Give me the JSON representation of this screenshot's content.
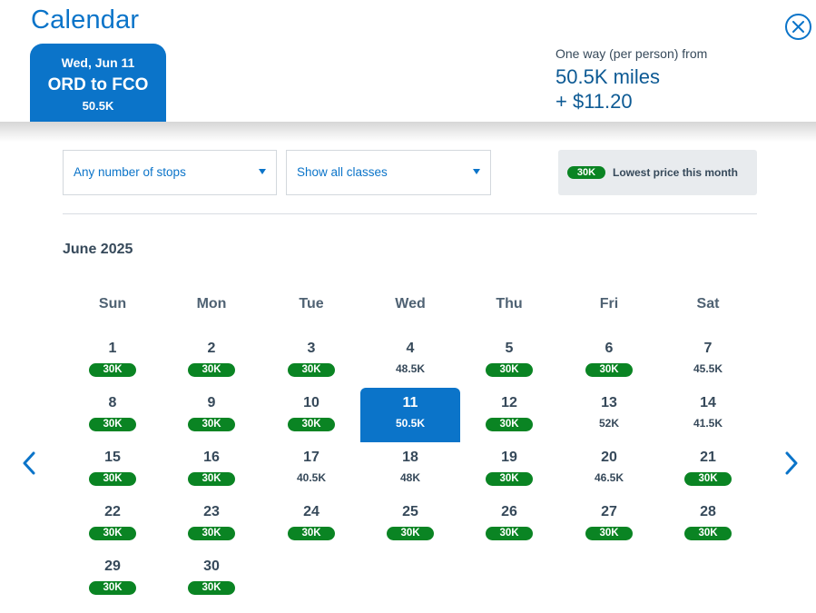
{
  "header": {
    "title": "Calendar",
    "trip": {
      "date": "Wed, Jun 11",
      "route": "ORD to FCO",
      "price": "50.5K"
    },
    "fare": {
      "label": "One way (per person) from",
      "miles": "50.5K miles",
      "cash": "+ $11.20"
    }
  },
  "filters": {
    "stops": "Any number of stops",
    "classes": "Show all classes"
  },
  "legend": {
    "badge": "30K",
    "text": "Lowest price this month"
  },
  "month_label": "June 2025",
  "weekdays": [
    "Sun",
    "Mon",
    "Tue",
    "Wed",
    "Thu",
    "Fri",
    "Sat"
  ],
  "colors": {
    "accent": "#0b74c9",
    "lowest": "#0a8423",
    "text": "#36495a"
  },
  "selected_day": "11",
  "days": [
    {
      "num": "1",
      "price": "30K",
      "lowest": true
    },
    {
      "num": "2",
      "price": "30K",
      "lowest": true
    },
    {
      "num": "3",
      "price": "30K",
      "lowest": true
    },
    {
      "num": "4",
      "price": "48.5K",
      "lowest": false
    },
    {
      "num": "5",
      "price": "30K",
      "lowest": true
    },
    {
      "num": "6",
      "price": "30K",
      "lowest": true
    },
    {
      "num": "7",
      "price": "45.5K",
      "lowest": false
    },
    {
      "num": "8",
      "price": "30K",
      "lowest": true
    },
    {
      "num": "9",
      "price": "30K",
      "lowest": true
    },
    {
      "num": "10",
      "price": "30K",
      "lowest": true
    },
    {
      "num": "11",
      "price": "50.5K",
      "lowest": false
    },
    {
      "num": "12",
      "price": "30K",
      "lowest": true
    },
    {
      "num": "13",
      "price": "52K",
      "lowest": false
    },
    {
      "num": "14",
      "price": "41.5K",
      "lowest": false
    },
    {
      "num": "15",
      "price": "30K",
      "lowest": true
    },
    {
      "num": "16",
      "price": "30K",
      "lowest": true
    },
    {
      "num": "17",
      "price": "40.5K",
      "lowest": false
    },
    {
      "num": "18",
      "price": "48K",
      "lowest": false
    },
    {
      "num": "19",
      "price": "30K",
      "lowest": true
    },
    {
      "num": "20",
      "price": "46.5K",
      "lowest": false
    },
    {
      "num": "21",
      "price": "30K",
      "lowest": true
    },
    {
      "num": "22",
      "price": "30K",
      "lowest": true
    },
    {
      "num": "23",
      "price": "30K",
      "lowest": true
    },
    {
      "num": "24",
      "price": "30K",
      "lowest": true
    },
    {
      "num": "25",
      "price": "30K",
      "lowest": true
    },
    {
      "num": "26",
      "price": "30K",
      "lowest": true
    },
    {
      "num": "27",
      "price": "30K",
      "lowest": true
    },
    {
      "num": "28",
      "price": "30K",
      "lowest": true
    },
    {
      "num": "29",
      "price": "30K",
      "lowest": true
    },
    {
      "num": "30",
      "price": "30K",
      "lowest": true
    }
  ],
  "icons": {
    "close": "close-circle-icon",
    "prev": "chevron-left-icon",
    "next": "chevron-right-icon",
    "dropdown": "caret-down-icon"
  }
}
